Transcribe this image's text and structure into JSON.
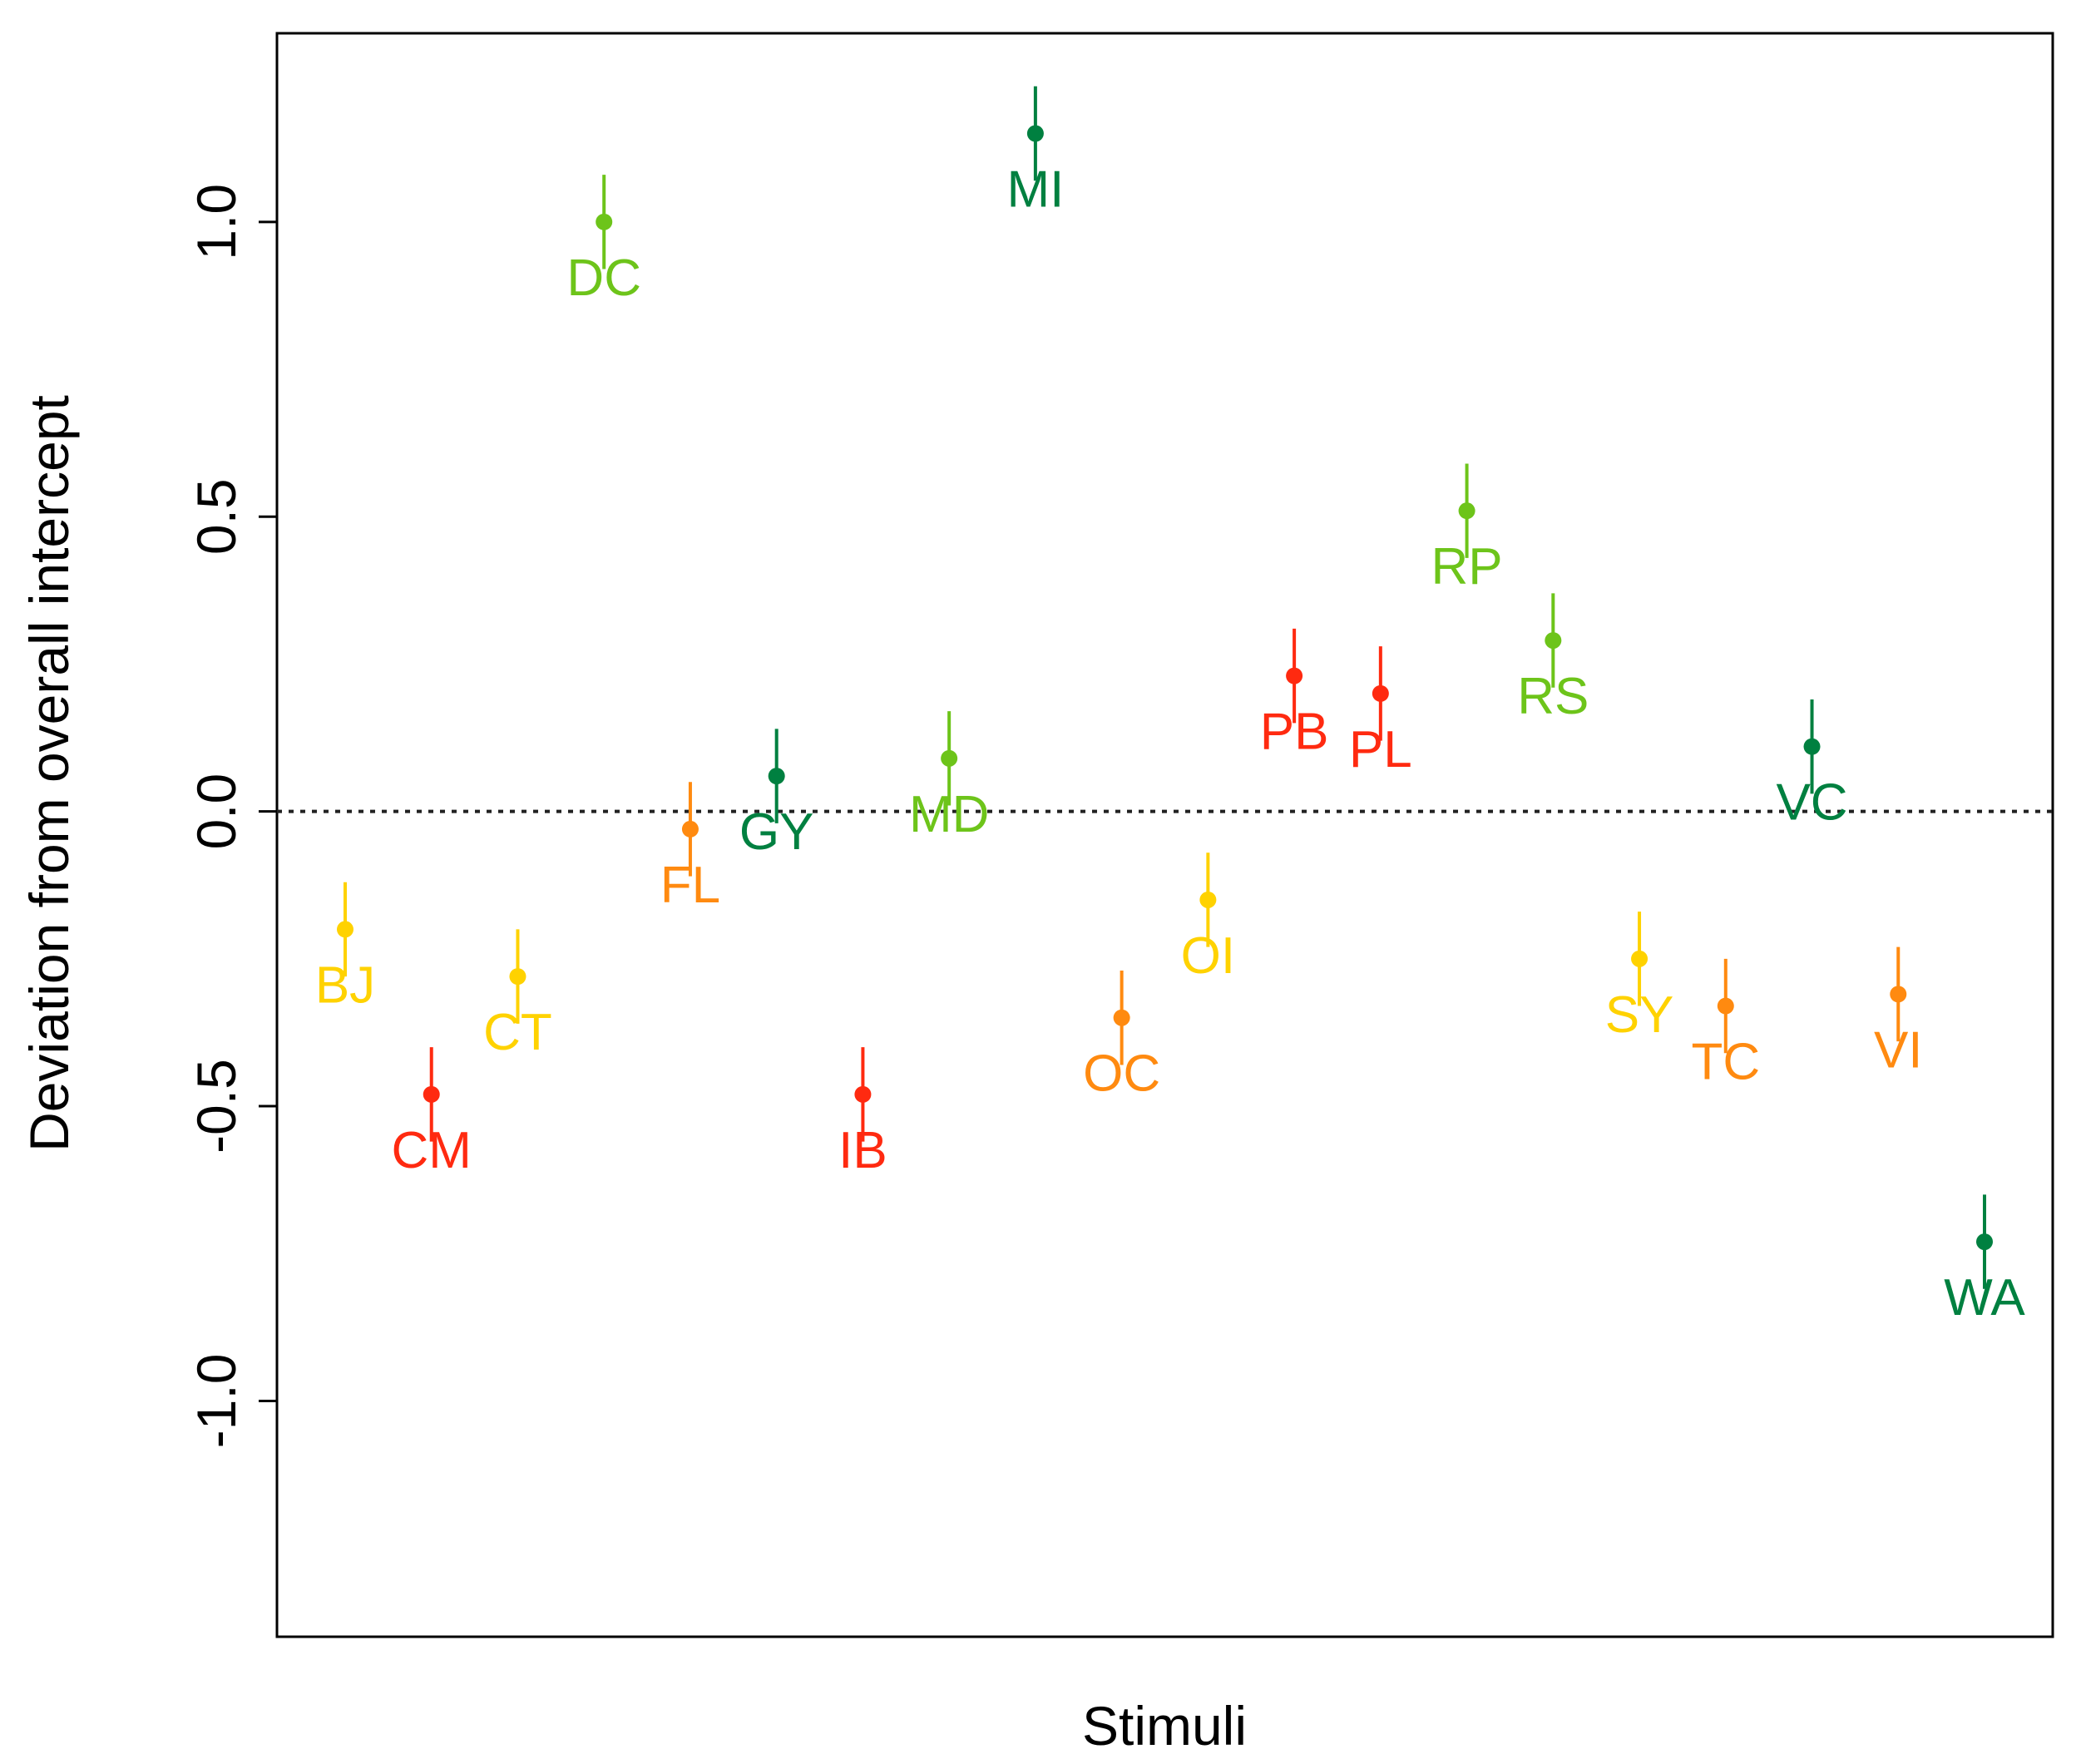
{
  "chart_data": {
    "type": "scatter",
    "title": "",
    "xlabel": "Stimuli",
    "ylabel": "Deviation from overall intercept",
    "ylim": [
      -1.4,
      1.32
    ],
    "yticks": [
      -1.0,
      -0.5,
      0.0,
      0.5,
      1.0
    ],
    "ytick_labels": [
      "-1.0",
      "-0.5",
      "0.0",
      "0.5",
      "1.0"
    ],
    "reference_line": {
      "y": 0.0,
      "style": "dotted"
    },
    "grid": false,
    "x_count": 20,
    "points": [
      {
        "label": "BJ",
        "x": 1,
        "y": -0.2,
        "low": -0.28,
        "high": -0.12,
        "color": "#FFD200"
      },
      {
        "label": "CM",
        "x": 2,
        "y": -0.48,
        "low": -0.56,
        "high": -0.4,
        "color": "#FF2A10"
      },
      {
        "label": "CT",
        "x": 3,
        "y": -0.28,
        "low": -0.36,
        "high": -0.2,
        "color": "#FFD200"
      },
      {
        "label": "DC",
        "x": 4,
        "y": 1.0,
        "low": 0.92,
        "high": 1.08,
        "color": "#6DC41A"
      },
      {
        "label": "FL",
        "x": 5,
        "y": -0.03,
        "low": -0.11,
        "high": 0.05,
        "color": "#FF8A10"
      },
      {
        "label": "GY",
        "x": 6,
        "y": 0.06,
        "low": -0.02,
        "high": 0.14,
        "color": "#008040"
      },
      {
        "label": "IB",
        "x": 7,
        "y": -0.48,
        "low": -0.56,
        "high": -0.4,
        "color": "#FF2A10"
      },
      {
        "label": "MD",
        "x": 8,
        "y": 0.09,
        "low": 0.01,
        "high": 0.17,
        "color": "#6DC41A"
      },
      {
        "label": "MI",
        "x": 9,
        "y": 1.15,
        "low": 1.07,
        "high": 1.23,
        "color": "#008040"
      },
      {
        "label": "OC",
        "x": 10,
        "y": -0.35,
        "low": -0.43,
        "high": -0.27,
        "color": "#FF8A10"
      },
      {
        "label": "OI",
        "x": 11,
        "y": -0.15,
        "low": -0.23,
        "high": -0.07,
        "color": "#FFD200"
      },
      {
        "label": "PB",
        "x": 12,
        "y": 0.23,
        "low": 0.15,
        "high": 0.31,
        "color": "#FF2A10"
      },
      {
        "label": "PL",
        "x": 13,
        "y": 0.2,
        "low": 0.12,
        "high": 0.28,
        "color": "#FF2A10"
      },
      {
        "label": "RP",
        "x": 14,
        "y": 0.51,
        "low": 0.43,
        "high": 0.59,
        "color": "#6DC41A"
      },
      {
        "label": "RS",
        "x": 15,
        "y": 0.29,
        "low": 0.21,
        "high": 0.37,
        "color": "#6DC41A"
      },
      {
        "label": "SY",
        "x": 16,
        "y": -0.25,
        "low": -0.33,
        "high": -0.17,
        "color": "#FFD200"
      },
      {
        "label": "TC",
        "x": 17,
        "y": -0.33,
        "low": -0.41,
        "high": -0.25,
        "color": "#FF8A10"
      },
      {
        "label": "VC",
        "x": 18,
        "y": 0.11,
        "low": 0.03,
        "high": 0.19,
        "color": "#008040"
      },
      {
        "label": "VI",
        "x": 19,
        "y": -0.31,
        "low": -0.39,
        "high": -0.23,
        "color": "#FF8A10"
      },
      {
        "label": "WA",
        "x": 20,
        "y": -0.73,
        "low": -0.81,
        "high": -0.65,
        "color": "#008040"
      }
    ]
  }
}
